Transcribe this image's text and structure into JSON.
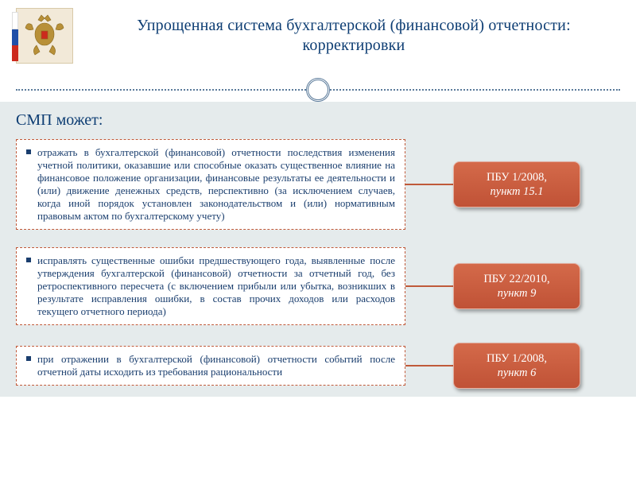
{
  "colors": {
    "title": "#0d3d73",
    "divider": "#5a7a9a",
    "panel_bg": "#e5ebec",
    "subtitle": "#0d3d73",
    "box_border": "#c05a3a",
    "box_text": "#1a3e6e",
    "bullet": "#1a3e6e",
    "connector": "#c05a3a",
    "badge_bg": "#d46a4a",
    "badge_bg_grad": "#c05236",
    "badge_text": "#ffffff"
  },
  "title": "Упрощенная система бухгалтерской (финансовой) отчетности: корректировки",
  "subtitle": "СМП может:",
  "items": [
    {
      "text": "отражать в бухгалтерской (финансовой) отчетности последствия изменения учетной политики, оказавшие или способные оказать существенное влияние на финансовое положение организации, финансовые результаты ее деятельности и (или) движение денежных средств, перспективно (за исключением случаев, когда иной порядок установлен законодательством и (или) нормативным правовым актом по бухгалтерскому учету)",
      "badge_line1": "ПБУ 1/2008,",
      "badge_line2": "пункт 15.1"
    },
    {
      "text": "исправлять существенные ошибки предшествующего года, выявленные после утверждения бухгалтерской (финансовой) отчетности за отчетный год, без ретроспективного пересчета (с включением прибыли или убытка, возникших в результате исправления ошибки, в состав прочих доходов или расходов текущего отчетного периода)",
      "badge_line1": "ПБУ 22/2010,",
      "badge_line2": "пункт 9"
    },
    {
      "text": "при отражении в бухгалтерской (финансовой) отчетности событий после отчетной даты исходить из требования рациональности",
      "badge_line1": "ПБУ 1/2008,",
      "badge_line2": "пункт 6"
    }
  ]
}
